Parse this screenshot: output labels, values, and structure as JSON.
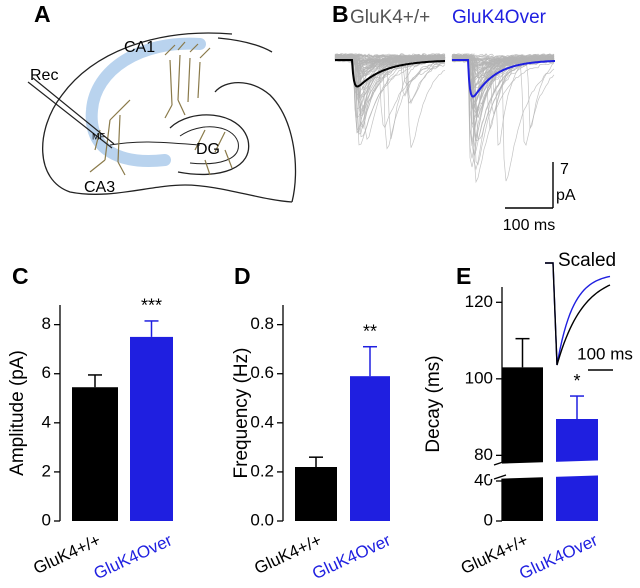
{
  "panels": {
    "A": {
      "label": "A",
      "electrode": "Rec",
      "regions": [
        "CA1",
        "MF",
        "DG",
        "CA3"
      ]
    },
    "B": {
      "label": "B",
      "groups": [
        {
          "name": "GluK4+/+",
          "color": "#555555",
          "trace_color": "#b4b4b4",
          "mean_color": "#000000"
        },
        {
          "name": "GluK4Over",
          "color": "#1f1fe0",
          "trace_color": "#b4b4b4",
          "mean_color": "#1f1fe0"
        }
      ],
      "scale_y": [
        "7",
        "pA"
      ],
      "scale_x": "100 ms"
    }
  },
  "chart_data": [
    {
      "panel_label": "C",
      "type": "bar",
      "ylabel": "Amplitude (pA)",
      "categories": [
        "GluK4+/+",
        "GluK4Over"
      ],
      "values": [
        5.45,
        7.5
      ],
      "errors": [
        0.5,
        0.65
      ],
      "colors": [
        "#000000",
        "#1f1fe0"
      ],
      "significance": [
        null,
        "***"
      ],
      "ylim": [
        0,
        8.8
      ],
      "yticks": [
        0,
        2,
        4,
        6,
        8
      ]
    },
    {
      "panel_label": "D",
      "type": "bar",
      "ylabel": "Frequency (Hz)",
      "categories": [
        "GluK4+/+",
        "GluK4Over"
      ],
      "values": [
        0.22,
        0.59
      ],
      "errors": [
        0.04,
        0.12
      ],
      "colors": [
        "#000000",
        "#1f1fe0"
      ],
      "significance": [
        null,
        "**"
      ],
      "ylim": [
        0,
        0.88
      ],
      "yticks": [
        {
          "value": 0,
          "label": "0.0"
        },
        0.2,
        0.4,
        0.6,
        0.8
      ]
    },
    {
      "panel_label": "E",
      "type": "bar",
      "ylabel": "Decay (ms)",
      "categories": [
        "GluK4+/+",
        "GluK4Over"
      ],
      "values": [
        103,
        89.5
      ],
      "errors": [
        7.5,
        6
      ],
      "colors": [
        "#000000",
        "#1f1fe0"
      ],
      "significance": [
        null,
        "*"
      ],
      "ylim": [
        0,
        124
      ],
      "ybreak": [
        44,
        78
      ],
      "yticks": [
        0,
        40,
        80,
        100,
        120
      ],
      "inset": {
        "title": "Scaled",
        "scale_bar": "100 ms"
      }
    }
  ]
}
